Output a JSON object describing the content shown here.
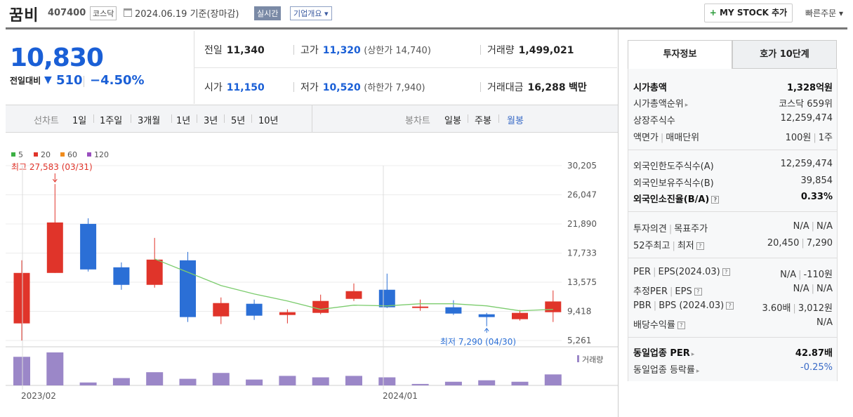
{
  "header": {
    "name": "꿈비",
    "code": "407400",
    "market": "코스닥",
    "date": "2024.06.19  기준(장마감)",
    "realtime": "실시간",
    "corp_info": "기업개요 ▾",
    "mystock_plus": "+",
    "mystock": " MY STOCK 추가",
    "quick_order": "빠른주문 ▾"
  },
  "price": {
    "current": "10,830",
    "change_label": "전일대비",
    "change_arrow": "▼",
    "change_value": "510",
    "change_pct": "−4.50%"
  },
  "metrics": {
    "prev_close_label": "전일",
    "prev_close": "11,340",
    "high_label": "고가",
    "high": "11,320",
    "upper_limit": "(상한가 14,740)",
    "volume_label": "거래량",
    "volume": "1,499,021",
    "open_label": "시가",
    "open": "11,150",
    "low_label": "저가",
    "low": "10,520",
    "lower_limit": "(하한가 7,940)",
    "amount_label": "거래대금",
    "amount": "16,288",
    "amount_unit": "백만"
  },
  "period_bar": {
    "line_label": "선차트",
    "line_items": [
      "1일",
      "1주일",
      "3개월",
      "1년",
      "3년",
      "5년",
      "10년"
    ],
    "candle_label": "봉차트",
    "candle_items": [
      "일봉",
      "주봉",
      "월봉"
    ],
    "active": "월봉"
  },
  "chart_data": {
    "type": "candlestick",
    "legend": [
      {
        "name": "5",
        "color": "#3cb044"
      },
      {
        "name": "20",
        "color": "#e0342a"
      },
      {
        "name": "60",
        "color": "#f08c1c"
      },
      {
        "name": "120",
        "color": "#9a4fbf"
      }
    ],
    "y_ticks": [
      "30,205",
      "26,047",
      "21,890",
      "17,733",
      "13,575",
      "9,418",
      "5,261"
    ],
    "ylim": [
      5261,
      30205
    ],
    "x_labels": [
      "2023/02",
      "2024/01"
    ],
    "high_annotation": "최고 27,583 (03/31)",
    "low_annotation": "최저  7,290 (04/30)",
    "volume_label": "거래량",
    "candles": [
      {
        "o": 7700,
        "h": 16700,
        "l": 5261,
        "c": 14900
      },
      {
        "o": 14900,
        "h": 27583,
        "l": 14900,
        "c": 22100
      },
      {
        "o": 21900,
        "h": 22700,
        "l": 15100,
        "c": 15400
      },
      {
        "o": 15700,
        "h": 16400,
        "l": 12500,
        "c": 13200
      },
      {
        "o": 13200,
        "h": 19900,
        "l": 12800,
        "c": 16800
      },
      {
        "o": 16700,
        "h": 17900,
        "l": 7900,
        "c": 8600
      },
      {
        "o": 8700,
        "h": 11400,
        "l": 7600,
        "c": 10600
      },
      {
        "o": 10500,
        "h": 11100,
        "l": 8200,
        "c": 8800
      },
      {
        "o": 8900,
        "h": 9700,
        "l": 7700,
        "c": 9300
      },
      {
        "o": 9200,
        "h": 11800,
        "l": 9000,
        "c": 10900
      },
      {
        "o": 11200,
        "h": 13400,
        "l": 10900,
        "c": 12300
      },
      {
        "o": 12500,
        "h": 14800,
        "l": 9900,
        "c": 10000
      },
      {
        "o": 9900,
        "h": 11100,
        "l": 9500,
        "c": 10100
      },
      {
        "o": 10000,
        "h": 11000,
        "l": 8900,
        "c": 9100
      },
      {
        "o": 9000,
        "h": 9200,
        "l": 7290,
        "c": 8600
      },
      {
        "o": 8300,
        "h": 9600,
        "l": 8100,
        "c": 9200
      },
      {
        "o": 9300,
        "h": 12400,
        "l": 7900,
        "c": 10830
      }
    ],
    "ma20": [
      null,
      null,
      null,
      null,
      16900,
      15000,
      13100,
      11900,
      10900,
      9700,
      10300,
      10200,
      10500,
      10500,
      10200,
      9500,
      9700
    ],
    "volumes": [
      39,
      45,
      4,
      10,
      18,
      9,
      17,
      8,
      13,
      11,
      13,
      11,
      2,
      5,
      7,
      5,
      15
    ]
  },
  "panel": {
    "tab_active": "투자정보",
    "tab_inactive": "호가 10단계",
    "rows": [
      {
        "k": "시가총액",
        "v": "1,328억원"
      },
      {
        "k": "시가총액순위",
        "v": "코스닥 659위"
      },
      {
        "k": "상장주식수",
        "v": "12,259,474"
      },
      {
        "k1": "액면가",
        "k2": "매매단위",
        "v1": "100원",
        "v2": "1주"
      },
      {
        "k": "외국인한도주식수(A)",
        "v": "12,259,474"
      },
      {
        "k": "외국인보유주식수(B)",
        "v": "39,854"
      },
      {
        "k": "외국인소진율(B/A)",
        "v": "0.33%"
      },
      {
        "k1": "투자의견",
        "k2": "목표주가",
        "v1": "N/A",
        "v2": "N/A"
      },
      {
        "k1": "52주최고",
        "k2": "최저",
        "v1": "20,450",
        "v2": "7,290"
      },
      {
        "k1": "PER",
        "k2": "EPS(2024.03)",
        "v1": "N/A",
        "v2": "-110원"
      },
      {
        "k1": "추정PER",
        "k2": "EPS",
        "v1": "N/A",
        "v2": "N/A"
      },
      {
        "k1": "PBR",
        "k2": "BPS (2024.03)",
        "v1": "3.60배",
        "v2": "3,012원"
      },
      {
        "k": "배당수익률",
        "v": "N/A"
      },
      {
        "k": "동일업종 PER",
        "v": "42.87배"
      },
      {
        "k": "동일업종 등락률",
        "v": "-0.25%"
      }
    ]
  }
}
